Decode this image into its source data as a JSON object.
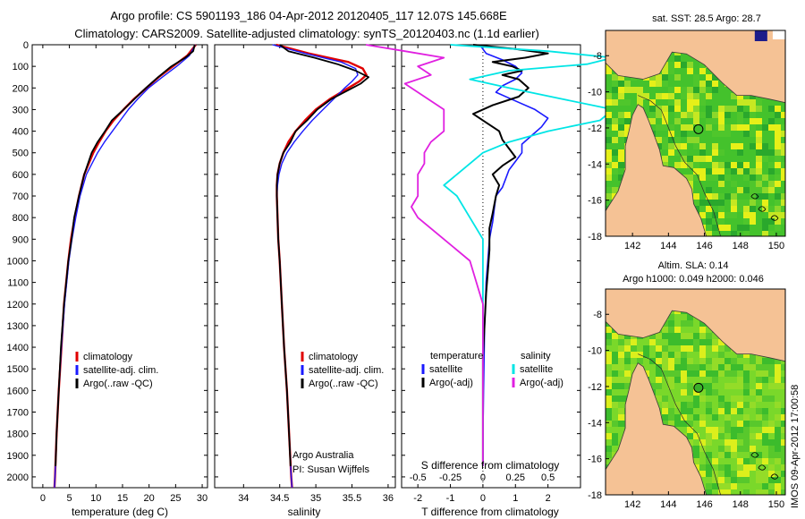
{
  "header": {
    "line1": "Argo profile: CS 5901193_186 04-Apr-2012 20120405_117 12.07S 145.668E",
    "line2": "Climatology: CARS2009. Satellite-adjusted climatology: synTS_20120403.nc (1.1d earlier)"
  },
  "colors": {
    "climatology": "#e00000",
    "satellite": "#1a1aff",
    "argo": "#000000",
    "sat_salinity": "#00e5e5",
    "argo_salinity": "#e020e0",
    "land": "#f5c295",
    "sea_green": "#3fbf2a",
    "sea_yellow": "#e8f020",
    "sea_deep": "#1c1c8a"
  },
  "chart_data": [
    {
      "type": "line",
      "id": "temperature",
      "xlabel": "temperature (deg C)",
      "xlim": [
        -2,
        31
      ],
      "xticks": [
        0,
        5,
        10,
        15,
        20,
        25,
        30
      ],
      "ylim": [
        0,
        2050
      ],
      "yticks": [
        0,
        100,
        200,
        300,
        400,
        500,
        600,
        700,
        800,
        900,
        1000,
        1100,
        1200,
        1300,
        1400,
        1500,
        1600,
        1700,
        1800,
        1900,
        2000
      ],
      "legend": [
        "climatology",
        "satellite-adj. clim.",
        "Argo(..raw -QC)"
      ],
      "legend_position": "bottom-left",
      "series": [
        {
          "name": "climatology",
          "depth": [
            0,
            50,
            100,
            150,
            200,
            250,
            300,
            350,
            400,
            450,
            500,
            600,
            700,
            800,
            900,
            1000,
            1200,
            1400,
            1600,
            1800,
            2000,
            2050
          ],
          "values": [
            28.8,
            27.2,
            24.5,
            21.8,
            19.5,
            17.2,
            15.2,
            13.3,
            11.8,
            10.6,
            9.5,
            7.8,
            6.8,
            6.0,
            5.3,
            4.8,
            4.0,
            3.5,
            3.0,
            2.6,
            2.3,
            2.2
          ]
        },
        {
          "name": "satellite-adj. clim.",
          "depth": [
            0,
            50,
            100,
            150,
            200,
            250,
            300,
            350,
            400,
            450,
            500,
            600,
            700,
            800,
            900,
            1000,
            1200,
            1400,
            1600,
            1800,
            2000,
            2050
          ],
          "values": [
            28.7,
            27.6,
            25.2,
            22.5,
            19.9,
            17.9,
            16.1,
            14.6,
            13.1,
            11.6,
            10.3,
            8.2,
            7.0,
            6.2,
            5.5,
            4.9,
            4.1,
            3.5,
            3.0,
            2.6,
            2.3,
            2.2
          ]
        },
        {
          "name": "Argo(..raw -QC)",
          "depth": [
            0,
            30,
            60,
            100,
            150,
            200,
            250,
            300,
            350,
            400,
            450,
            500,
            600,
            700,
            800,
            900,
            1000,
            1200,
            1400,
            1600,
            1800,
            1950
          ],
          "values": [
            28.6,
            28.3,
            26.8,
            24.2,
            21.7,
            19.4,
            17.3,
            15.2,
            13.0,
            11.7,
            10.3,
            9.2,
            7.8,
            6.8,
            5.9,
            5.4,
            4.8,
            4.0,
            3.4,
            3.0,
            2.6,
            2.4
          ]
        }
      ],
      "annotations": []
    },
    {
      "type": "line",
      "id": "salinity",
      "xlabel": "salinity",
      "xlim": [
        33.6,
        36.1
      ],
      "xticks": [
        34,
        34.5,
        35,
        35.5,
        36
      ],
      "ylim": [
        0,
        2050
      ],
      "legend": [
        "climatology",
        "satellite-adj. clim.",
        "Argo(..raw -QC)"
      ],
      "legend_position": "bottom-right",
      "series": [
        {
          "name": "climatology",
          "depth": [
            0,
            40,
            80,
            110,
            140,
            170,
            200,
            250,
            300,
            350,
            400,
            450,
            500,
            550,
            600,
            650,
            700,
            800,
            900,
            1000,
            1200,
            1400,
            1600,
            1800,
            2000,
            2050
          ],
          "values": [
            34.45,
            34.9,
            35.45,
            35.65,
            35.7,
            35.6,
            35.45,
            35.2,
            35.0,
            34.85,
            34.72,
            34.62,
            34.55,
            34.5,
            34.47,
            34.46,
            34.46,
            34.47,
            34.48,
            34.5,
            34.53,
            34.56,
            34.6,
            34.63,
            34.66,
            34.67
          ]
        },
        {
          "name": "satellite-adj. clim.",
          "depth": [
            0,
            40,
            80,
            110,
            140,
            170,
            200,
            250,
            300,
            350,
            400,
            450,
            500,
            550,
            600,
            650,
            700,
            800,
            900,
            1000,
            1200,
            1400,
            1600,
            1800,
            2000,
            2050
          ],
          "values": [
            34.4,
            34.85,
            35.35,
            35.55,
            35.58,
            35.5,
            35.4,
            35.25,
            35.1,
            34.95,
            34.82,
            34.7,
            34.6,
            34.53,
            34.49,
            34.47,
            34.46,
            34.47,
            34.48,
            34.5,
            34.53,
            34.56,
            34.6,
            34.63,
            34.66,
            34.67
          ]
        },
        {
          "name": "Argo(..raw -QC)",
          "depth": [
            0,
            30,
            60,
            90,
            120,
            150,
            180,
            210,
            250,
            300,
            350,
            400,
            450,
            500,
            550,
            600,
            650,
            700,
            800,
            900,
            1000,
            1200,
            1400,
            1600,
            1800,
            1950
          ],
          "values": [
            34.5,
            34.62,
            34.98,
            35.3,
            35.55,
            35.73,
            35.62,
            35.45,
            35.22,
            35.02,
            34.88,
            34.72,
            34.65,
            34.55,
            34.5,
            34.47,
            34.46,
            34.46,
            34.47,
            34.48,
            34.5,
            34.53,
            34.56,
            34.6,
            34.63,
            34.65
          ]
        }
      ],
      "annotations": [
        "Argo Australia",
        "PI: Susan Wijffels"
      ]
    },
    {
      "type": "line",
      "id": "difference",
      "xlabel": "T difference from climatology",
      "xlabel_top": "S difference from climatology",
      "xlim": [
        -2.5,
        3.0
      ],
      "xticks": [
        -2,
        -1,
        0,
        1,
        2
      ],
      "xticks_top": [
        -0.5,
        -0.25,
        0,
        0.25,
        0.5
      ],
      "top_tick_positions_T": [
        -2,
        -1,
        0,
        1,
        2
      ],
      "ylim": [
        0,
        2050
      ],
      "legend_headers": [
        "temperature",
        "salinity"
      ],
      "legend": [
        "satellite",
        "Argo(-adj)",
        "satellite",
        "Argo(-adj)"
      ],
      "legend_position": "bottom",
      "series": [
        {
          "name": "temperature satellite",
          "depth": [
            0,
            40,
            70,
            100,
            130,
            160,
            190,
            220,
            260,
            300,
            340,
            380,
            420,
            460,
            500,
            540,
            580,
            620,
            660,
            700,
            760,
            820,
            900,
            1000,
            1100,
            1200,
            1300,
            1400,
            1500,
            1600,
            1700,
            1800,
            1950
          ],
          "values": [
            -0.1,
            0.1,
            0.6,
            1.0,
            1.2,
            1.0,
            0.6,
            0.4,
            1.0,
            1.6,
            2.0,
            1.8,
            1.5,
            1.2,
            1.2,
            1.0,
            0.8,
            0.7,
            0.6,
            0.4,
            0.35,
            0.3,
            0.2,
            0.15,
            0.1,
            0.08,
            0.05,
            0.04,
            0.03,
            0.02,
            0.01,
            0.0,
            0.0
          ]
        },
        {
          "name": "temperature Argo(-adj)",
          "depth": [
            0,
            20,
            40,
            60,
            80,
            100,
            120,
            140,
            160,
            200,
            240,
            280,
            320,
            360,
            400,
            440,
            480,
            520,
            560,
            600,
            650,
            700,
            780,
            850,
            950,
            1050,
            1150,
            1300,
            1450,
            1600,
            1750,
            1950
          ],
          "values": [
            -0.3,
            1.0,
            2.0,
            1.3,
            0.3,
            0.9,
            1.2,
            0.6,
            1.1,
            1.4,
            1.1,
            0.3,
            -0.3,
            0.1,
            0.5,
            0.6,
            0.8,
            1.0,
            0.6,
            0.3,
            0.5,
            0.4,
            0.3,
            0.2,
            0.2,
            0.15,
            0.1,
            0.05,
            0.0,
            0.0,
            0.0,
            0.0
          ]
        },
        {
          "name": "salinity satellite",
          "depth": [
            0,
            30,
            60,
            90,
            120,
            160,
            200,
            250,
            300,
            350,
            400,
            450,
            500,
            550,
            600,
            650,
            700,
            800,
            900,
            1000,
            1200,
            1400,
            1600,
            1800,
            1950
          ],
          "values": [
            -0.25,
            0.5,
            1.0,
            0.8,
            0.2,
            -0.1,
            0.2,
            0.6,
            1.0,
            0.9,
            0.5,
            0.2,
            0.0,
            -0.1,
            -0.2,
            -0.3,
            -0.2,
            -0.1,
            0.0,
            0.0,
            0.0,
            0.0,
            0.0,
            0.0,
            0.0
          ]
        },
        {
          "name": "salinity Argo(-adj)",
          "depth": [
            0,
            30,
            60,
            100,
            140,
            180,
            220,
            260,
            300,
            350,
            400,
            450,
            500,
            550,
            600,
            650,
            700,
            750,
            800,
            900,
            1000,
            1200,
            1400,
            1600,
            1800,
            1950
          ],
          "values": [
            -0.9,
            -0.6,
            -0.3,
            -0.5,
            -0.4,
            -0.6,
            -0.5,
            -0.4,
            -0.3,
            -0.3,
            -0.3,
            -0.4,
            -0.45,
            -0.45,
            -0.5,
            -0.5,
            -0.5,
            -0.55,
            -0.5,
            -0.3,
            -0.1,
            0.0,
            0.0,
            0.0,
            0.0,
            0.0
          ]
        }
      ],
      "annotations": []
    }
  ],
  "maps": [
    {
      "id": "sst-map",
      "title": "sat. SST: 28.5 Argo: 28.7",
      "lon_ticks": [
        142,
        144,
        146,
        148,
        150
      ],
      "lat_ticks": [
        -8,
        -10,
        -12,
        -14,
        -16,
        -18
      ],
      "lon_range": [
        140.5,
        150.5
      ],
      "lat_range": [
        -18,
        -6.6
      ],
      "argo_position": {
        "lon": 145.668,
        "lat": -12.07
      }
    },
    {
      "id": "sla-map",
      "title_line1": "Altim. SLA: 0.14",
      "title_line2": "Argo h1000: 0.049 h2000: 0.046",
      "lon_ticks": [
        142,
        144,
        146,
        148,
        150
      ],
      "lat_ticks": [
        -8,
        -10,
        -12,
        -14,
        -16,
        -18
      ],
      "lon_range": [
        140.5,
        150.5
      ],
      "lat_range": [
        -18,
        -6.6
      ],
      "argo_position": {
        "lon": 145.668,
        "lat": -12.07
      }
    }
  ],
  "footer": {
    "stamp": "IMOS 09-Apr-2012 17:00:58"
  }
}
